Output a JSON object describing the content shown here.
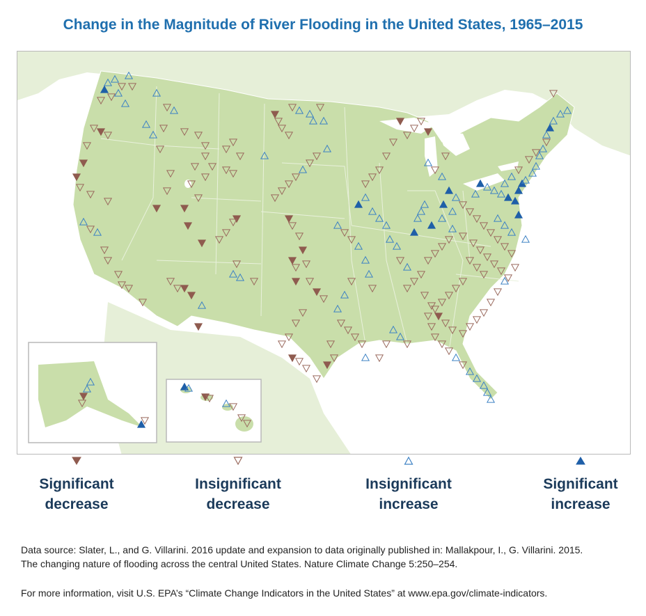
{
  "title": "Change in the Magnitude of River Flooding in the United States, 1965–2015",
  "colors": {
    "significant_decrease": "#8f5b4f",
    "insignificant_decrease": "#9a6a5e",
    "insignificant_increase": "#3d82c4",
    "significant_increase": "#1f5fa8",
    "land_us": "#c9deaa",
    "land_other": "#e6efd8",
    "water": "#ffffff",
    "title": "#1f6fae",
    "legend_text": "#1b3a5a"
  },
  "map": {
    "region": "contiguous United States with Alaska and Hawaii insets",
    "symbol_shapes": {
      "significant_decrease": "filled-down-triangle",
      "insignificant_decrease": "hollow-down-triangle",
      "insignificant_increase": "hollow-up-triangle",
      "significant_increase": "filled-up-triangle"
    },
    "insets": [
      "Alaska",
      "Hawaii"
    ]
  },
  "legend": [
    {
      "key": "significant_decrease",
      "line1": "Significant",
      "line2": "decrease",
      "icon": "filled-down-triangle"
    },
    {
      "key": "insignificant_decrease",
      "line1": "Insignificant",
      "line2": "decrease",
      "icon": "hollow-down-triangle"
    },
    {
      "key": "insignificant_increase",
      "line1": "Insignificant",
      "line2": "increase",
      "icon": "hollow-up-triangle"
    },
    {
      "key": "significant_increase",
      "line1": "Significant",
      "line2": "increase",
      "icon": "filled-up-triangle"
    }
  ],
  "source_line1": "Data source: Slater, L., and G. Villarini. 2016 update and expansion to data originally published in: Mallakpour, I., G. Villarini. 2015.",
  "source_line2": "The changing nature of flooding across the central United States. Nature Climate Change 5:250–254.",
  "info": "For more information, visit U.S. EPA’s “Climate Change Indicators in the United States” at www.epa.gov/climate-indicators."
}
